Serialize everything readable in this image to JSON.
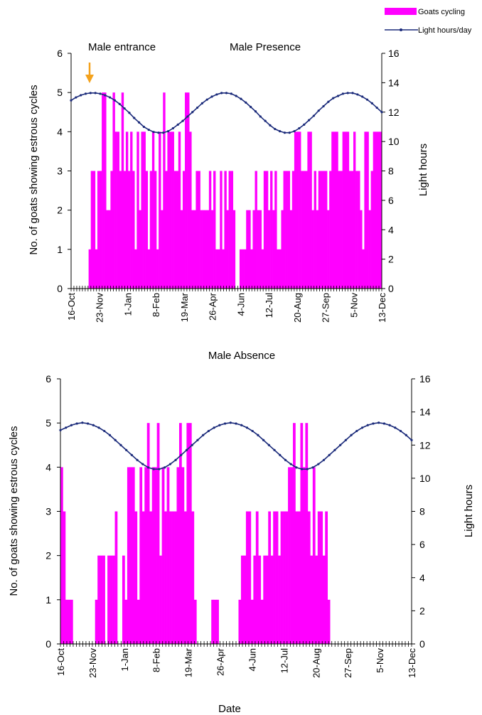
{
  "legend": {
    "bars_label": "Goats cycling",
    "line_label": "Light hours/day",
    "bars_color": "#ff00ff",
    "line_color": "#1a2a7a"
  },
  "chart_data": [
    {
      "type": "bar",
      "title": "",
      "annotations": [
        "Male entrance",
        "Male Presence"
      ],
      "annotation_arrow_color": "#f4a21d",
      "xlabel": "",
      "ylabel": "No. of goats showing estrous cycles",
      "ylabel_right": "Light hours",
      "ylim": [
        0,
        6
      ],
      "ylim_right": [
        0,
        16
      ],
      "yticks": [
        0,
        1,
        2,
        3,
        4,
        5,
        6
      ],
      "yticks_right": [
        0,
        2,
        4,
        6,
        8,
        10,
        12,
        14,
        16
      ],
      "x_tick_labels": [
        "16-Oct",
        "23-Nov",
        "1-Jan",
        "8-Feb",
        "19-Mar",
        "26-Apr",
        "4-Jun",
        "12-Jul",
        "20-Aug",
        "27-Sep",
        "5-Nov",
        "13-Dec"
      ],
      "x_start": "16-Oct",
      "x_end": "13-Dec",
      "series": [
        {
          "name": "Goats cycling",
          "kind": "bar",
          "values": [
            0,
            0,
            0,
            0,
            0,
            0,
            0,
            0,
            1,
            3,
            3,
            1,
            3,
            3,
            5,
            5,
            2,
            2,
            3,
            5,
            4,
            4,
            3,
            5,
            3,
            4,
            3,
            4,
            3,
            1,
            4,
            2,
            4,
            4,
            3,
            1,
            3,
            4,
            3,
            1,
            4,
            2,
            5,
            3,
            4,
            4,
            4,
            3,
            3,
            4,
            2,
            3,
            5,
            5,
            4,
            2,
            2,
            3,
            3,
            2,
            2,
            2,
            2,
            3,
            2,
            3,
            1,
            1,
            3,
            1,
            3,
            2,
            3,
            3,
            2,
            0,
            0,
            1,
            1,
            1,
            2,
            2,
            1,
            2,
            3,
            2,
            2,
            1,
            3,
            3,
            2,
            3,
            2,
            3,
            1,
            1,
            2,
            3,
            3,
            3,
            2,
            3,
            4,
            4,
            4,
            3,
            3,
            3,
            4,
            4,
            2,
            3,
            2,
            3,
            3,
            3,
            3,
            2,
            3,
            4,
            4,
            4,
            3,
            3,
            4,
            4,
            4,
            3,
            3,
            4,
            3,
            3,
            2,
            1,
            4,
            4,
            2,
            3,
            4,
            4,
            4,
            4
          ]
        },
        {
          "name": "Light hours/day",
          "kind": "line",
          "values": [
            12.8,
            13,
            13.15,
            13.25,
            13.3,
            13.3,
            13.25,
            13.15,
            13,
            12.8,
            12.55,
            12.25,
            11.95,
            11.6,
            11.3,
            11,
            10.8,
            10.65,
            10.6,
            10.6,
            10.7,
            10.9,
            11.15,
            11.4,
            11.7,
            12,
            12.3,
            12.6,
            12.85,
            13.05,
            13.2,
            13.3,
            13.3,
            13.25,
            13.1,
            12.9,
            12.65,
            12.35,
            12.05,
            11.7,
            11.4,
            11.1,
            10.85,
            10.7,
            10.6,
            10.6,
            10.7,
            10.9,
            11.15,
            11.45,
            11.75,
            12.1,
            12.4,
            12.7,
            12.95,
            13.1,
            13.25,
            13.3,
            13.3,
            13.2,
            13.05,
            12.85,
            12.6,
            12.3,
            12
          ]
        }
      ]
    },
    {
      "type": "bar",
      "title": "Male Absence",
      "annotations": [],
      "xlabel": "Date",
      "ylabel": "No. of goats showing estrous cycles",
      "ylabel_right": "Light hours",
      "ylim": [
        0,
        6
      ],
      "ylim_right": [
        0,
        16
      ],
      "yticks": [
        0,
        1,
        2,
        3,
        4,
        5,
        6
      ],
      "yticks_right": [
        0,
        2,
        4,
        6,
        8,
        10,
        12,
        14,
        16
      ],
      "x_tick_labels": [
        "16-Oct",
        "23-Nov",
        "1-Jan",
        "8-Feb",
        "19-Mar",
        "26-Apr",
        "4-Jun",
        "12-Jul",
        "20-Aug",
        "27-Sep",
        "5-Nov",
        "13-Dec"
      ],
      "x_start": "16-Oct",
      "x_end": "13-Dec",
      "series": [
        {
          "name": "Goats cycling",
          "kind": "bar",
          "values": [
            4,
            3,
            1,
            1,
            1,
            0,
            0,
            0,
            0,
            0,
            0,
            0,
            0,
            0,
            1,
            2,
            2,
            2,
            0,
            2,
            2,
            2,
            3,
            0,
            0,
            2,
            1,
            4,
            4,
            4,
            3,
            1,
            4,
            3,
            4,
            5,
            3,
            4,
            4,
            5,
            2,
            4,
            3,
            4,
            3,
            3,
            3,
            4,
            5,
            4,
            3,
            5,
            5,
            3,
            1,
            0,
            0,
            0,
            0,
            0,
            0,
            1,
            1,
            1,
            0,
            0,
            0,
            0,
            0,
            0,
            0,
            0,
            1,
            2,
            2,
            3,
            3,
            1,
            2,
            3,
            2,
            1,
            2,
            2,
            3,
            2,
            3,
            3,
            2,
            3,
            3,
            3,
            4,
            4,
            5,
            3,
            3,
            5,
            4,
            5,
            3,
            2,
            4,
            2,
            3,
            3,
            2,
            3,
            1,
            0,
            0,
            0,
            0,
            0,
            0,
            0,
            0,
            0,
            0,
            0,
            0,
            0,
            0,
            0,
            0,
            0,
            0,
            0,
            0,
            0,
            0,
            0,
            0,
            0,
            0,
            0,
            0,
            0,
            0,
            0,
            0,
            0
          ]
        },
        {
          "name": "Light hours/day",
          "kind": "line",
          "values": [
            12.9,
            13.05,
            13.2,
            13.3,
            13.35,
            13.3,
            13.2,
            13.05,
            12.85,
            12.6,
            12.3,
            12,
            11.7,
            11.4,
            11.1,
            10.85,
            10.65,
            10.55,
            10.55,
            10.65,
            10.85,
            11.1,
            11.4,
            11.7,
            12,
            12.3,
            12.6,
            12.85,
            13.05,
            13.2,
            13.3,
            13.35,
            13.3,
            13.2,
            13.05,
            12.85,
            12.6,
            12.3,
            12,
            11.7,
            11.4,
            11.1,
            10.85,
            10.65,
            10.55,
            10.55,
            10.65,
            10.85,
            11.1,
            11.4,
            11.7,
            12,
            12.3,
            12.6,
            12.85,
            13.05,
            13.2,
            13.3,
            13.35,
            13.3,
            13.2,
            13.05,
            12.85,
            12.6,
            12.3
          ]
        }
      ]
    }
  ]
}
